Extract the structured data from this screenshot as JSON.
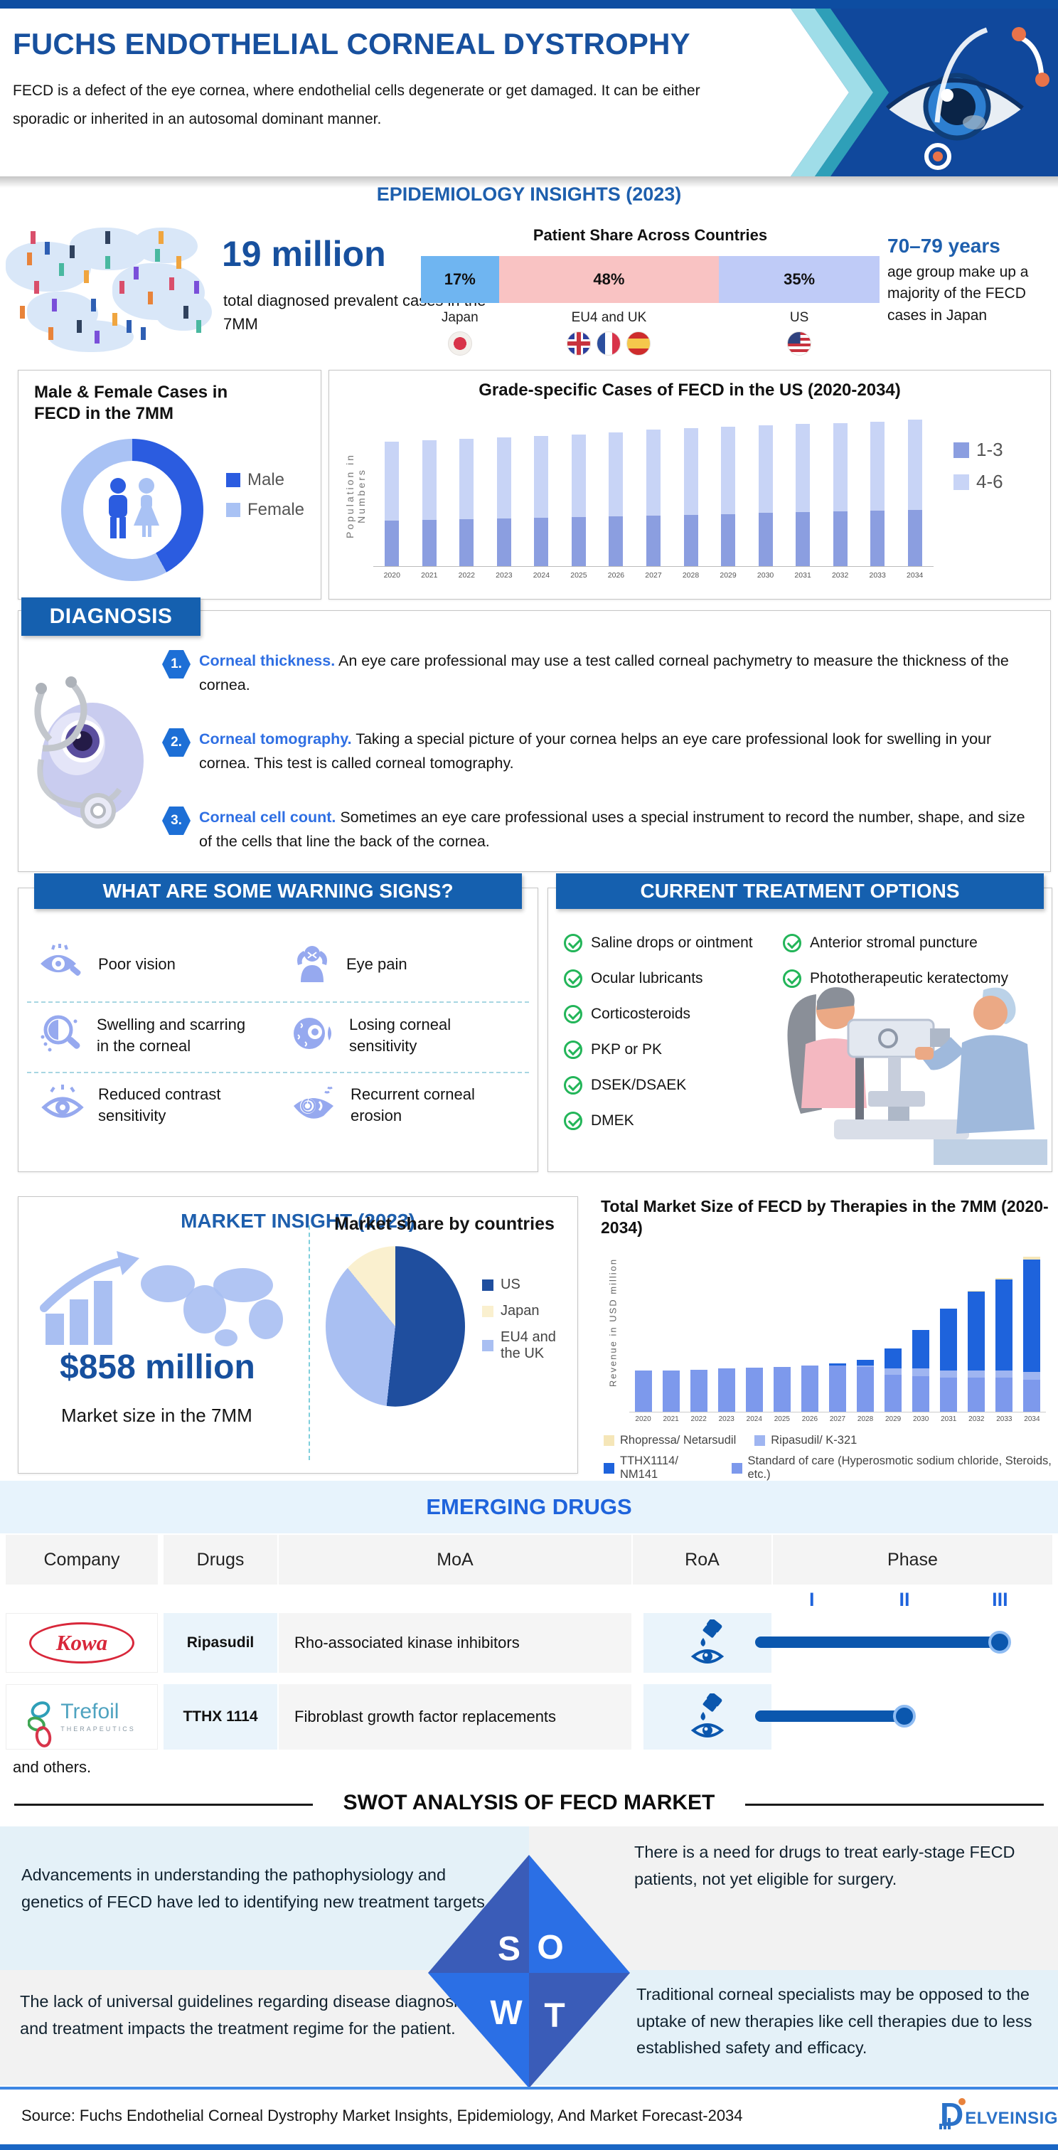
{
  "header": {
    "title": "FUCHS ENDOTHELIAL CORNEAL DYSTROPHY",
    "description": "FECD is a defect of the eye cornea, where endothelial cells degenerate or get damaged. It can be either sporadic or inherited in an autosomal dominant manner."
  },
  "epidemiology": {
    "section_title": "EPIDEMIOLOGY INSIGHTS (2023)",
    "prevalence_value": "19 million",
    "prevalence_caption": "total diagnosed prevalent cases in the 7MM",
    "age_value": "70–79 years",
    "age_caption": "age group make up a majority of the FECD cases in Japan",
    "patient_share": {
      "title": "Patient Share Across Countries",
      "segments": [
        {
          "label": "Japan",
          "value": 17,
          "display": "17%",
          "color": "#6FB5F1",
          "flags": [
            "japan"
          ]
        },
        {
          "label": "EU4 and UK",
          "value": 48,
          "display": "48%",
          "color": "#F9C3C3",
          "flags": [
            "uk",
            "france",
            "spain"
          ]
        },
        {
          "label": "US",
          "value": 35,
          "display": "35%",
          "color": "#BFCBF7",
          "flags": [
            "us"
          ]
        }
      ]
    }
  },
  "diagnosis": {
    "title": "DIAGNOSIS",
    "items": [
      {
        "num": "1.",
        "lead": "Corneal thickness.",
        "text": " An eye care professional may use a test called corneal pachymetry to measure the thickness of the cornea."
      },
      {
        "num": "2.",
        "lead": "Corneal tomography.",
        "text": " Taking a special picture of your cornea helps an eye care professional look for swelling in your cornea. This test is called corneal tomography."
      },
      {
        "num": "3.",
        "lead": "Corneal cell count.",
        "text": " Sometimes an eye care professional uses a special instrument to record the number, shape, and size of the cells that line the back of the cornea."
      }
    ]
  },
  "warning": {
    "title": "WHAT ARE SOME WARNING SIGNS?",
    "items": [
      {
        "label": "Poor vision",
        "icon": "poor-vision-icon"
      },
      {
        "label": "Eye pain",
        "icon": "eye-pain-icon"
      },
      {
        "label": "Swelling and scarring in the corneal",
        "icon": "swelling-scarring-icon"
      },
      {
        "label": "Losing corneal sensitivity",
        "icon": "losing-sensitivity-icon"
      },
      {
        "label": "Reduced contrast sensitivity",
        "icon": "reduced-contrast-icon"
      },
      {
        "label": "Recurrent corneal erosion",
        "icon": "corneal-erosion-icon"
      }
    ]
  },
  "treatment": {
    "title": "CURRENT TREATMENT OPTIONS",
    "col1": [
      "Saline drops or ointment",
      "Ocular lubricants",
      "Corticosteroids",
      "PKP or PK",
      "DSEK/DSAEK",
      "DMEK"
    ],
    "col2": [
      "Anterior stromal puncture",
      "Phototherapeutic keratectomy"
    ]
  },
  "market": {
    "title": "MARKET INSIGHT (2023)",
    "size_value": "$858 million",
    "size_caption": "Market size in the 7MM",
    "share_title": "Market share by countries"
  },
  "emerging": {
    "title": "EMERGING DRUGS",
    "columns": [
      "Company",
      "Drugs",
      "MoA",
      "RoA",
      "Phase"
    ],
    "phase_ticks": [
      "I",
      "II",
      "III"
    ],
    "rows": [
      {
        "company": "Kowa",
        "drug": "Ripasudil",
        "moa": "Rho-associated kinase inhibitors",
        "roa": "eye-drops",
        "phase": "III"
      },
      {
        "company": "Trefoil Therapeutics",
        "company_sub": "THERAPEUTICS",
        "company_main": "Trefoil",
        "drug": "TTHX 1114",
        "moa": "Fibroblast growth factor replacements",
        "roa": "eye-drops",
        "phase": "II"
      }
    ],
    "footnote": "and others."
  },
  "swot": {
    "title": "SWOT ANALYSIS OF FECD MARKET",
    "letters": [
      "S",
      "O",
      "W",
      "T"
    ],
    "strength": "Advancements in understanding the pathophysiology and genetics of FECD have led to identifying new treatment targets.",
    "opportunity": "There is a need for drugs to treat early-stage FECD patients, not yet eligible for surgery.",
    "weakness": "The lack of universal guidelines regarding disease diagnosis and treatment impacts the treatment regime for the patient.",
    "threat": "Traditional corneal specialists may be opposed to the uptake of new therapies like cell therapies due to less established safety and efficacy."
  },
  "footer": {
    "source": "Source: Fuchs Endothelial Corneal Dystrophy Market Insights, Epidemiology, And Market Forecast-2034",
    "brand_initial": "D",
    "brand_rest": "ELVEINSIGHT"
  },
  "chart_data": [
    {
      "id": "gender_donut",
      "type": "pie",
      "title": "Male & Female Cases in FECD in the 7MM",
      "labels": [
        "Male",
        "Female"
      ],
      "values": [
        42,
        58
      ],
      "colors": [
        "#2B5CE0",
        "#A9C2F4"
      ],
      "legend_position": "right",
      "note": "donut; shares estimated from arc angles, no numeric labels shown"
    },
    {
      "id": "grade_bars",
      "type": "bar",
      "stacked": true,
      "title": "Grade-specific Cases of FECD in the US (2020-2034)",
      "xlabel": "",
      "ylabel": "Population in Numbers",
      "ylim": [
        0,
        100
      ],
      "grid": false,
      "legend_position": "right",
      "categories": [
        "2020",
        "2021",
        "2022",
        "2023",
        "2024",
        "2025",
        "2026",
        "2027",
        "2028",
        "2029",
        "2030",
        "2031",
        "2032",
        "2033",
        "2034"
      ],
      "series": [
        {
          "name": "1-3",
          "color": "#8B9EE0",
          "values": [
            30,
            30.5,
            31,
            31.5,
            32,
            32.5,
            33,
            33.5,
            34,
            34.5,
            35,
            35.5,
            36,
            36.5,
            37
          ]
        },
        {
          "name": "4-6",
          "color": "#C8D4F6",
          "values": [
            52,
            52.5,
            53,
            53.5,
            54,
            54.5,
            55.5,
            56.5,
            57,
            57.5,
            58,
            58.5,
            58.5,
            59,
            59.5
          ]
        }
      ],
      "note": "y axis unlabeled; values are relative estimates"
    },
    {
      "id": "market_share_pie",
      "type": "pie",
      "title": "Market share by countries",
      "labels": [
        "US",
        "Japan",
        "EU4 and the UK"
      ],
      "values": [
        52,
        12,
        36
      ],
      "colors": [
        "#1F4E9E",
        "#FAF0CF",
        "#A9BFF2"
      ],
      "legend_position": "right",
      "note": "shares estimated from arc angles, no numeric labels shown"
    },
    {
      "id": "market_size_bars",
      "type": "bar",
      "stacked": true,
      "title": "Total Market Size of FECD by Therapies in the 7MM (2020-2034)",
      "xlabel": "",
      "ylabel": "Revenue in USD million",
      "ylim": [
        0,
        105
      ],
      "grid": false,
      "legend_position": "bottom",
      "categories": [
        "2020",
        "2021",
        "2022",
        "2023",
        "2024",
        "2025",
        "2026",
        "2027",
        "2028",
        "2029",
        "2030",
        "2031",
        "2032",
        "2033",
        "2034"
      ],
      "series": [
        {
          "name": "Standard of care (Hyperosmotic sodium chloride, Steroids, etc.)",
          "color": "#7D99EC",
          "values": [
            27,
            27,
            27.5,
            28,
            28.5,
            29,
            30,
            30,
            29,
            24,
            23,
            22,
            22,
            22,
            21
          ]
        },
        {
          "name": "Ripasudil/ K-321",
          "color": "#9FB5F1",
          "values": [
            0,
            0,
            0,
            0,
            0,
            0,
            0,
            0,
            1,
            4,
            5,
            5,
            5,
            5,
            5
          ]
        },
        {
          "name": "TTHX1114/ NM141",
          "color": "#1E63DC",
          "values": [
            0,
            0,
            0,
            0,
            0,
            0,
            0,
            1.5,
            4,
            13,
            25,
            40,
            51,
            59,
            73
          ]
        },
        {
          "name": "Rhopressa/ Netarsudil",
          "color": "#F5E6B8",
          "values": [
            0,
            0,
            0,
            0,
            0,
            0,
            0,
            0,
            0,
            0,
            0,
            0,
            0.8,
            1.2,
            1.8
          ]
        }
      ],
      "note": "y axis unlabeled; values are relative estimates"
    }
  ]
}
